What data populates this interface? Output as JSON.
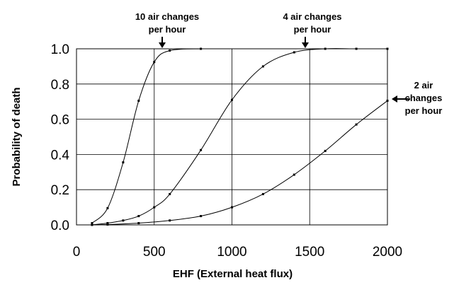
{
  "chart_data": {
    "type": "scatter",
    "xlabel": "EHF (External heat flux)",
    "ylabel": "Probability of death",
    "xlim": [
      0,
      2000
    ],
    "ylim": [
      0,
      1.0
    ],
    "x_ticks": [
      "0",
      "500",
      "1000",
      "1500",
      "2000"
    ],
    "y_ticks": [
      "0.0",
      "0.2",
      "0.4",
      "0.6",
      "0.8",
      "1.0"
    ],
    "grid": true,
    "legend": "none",
    "series": [
      {
        "annotation": [
          "10 air changes",
          "per hour"
        ],
        "points": [
          [
            100,
            0.01
          ],
          [
            200,
            0.095
          ],
          [
            300,
            0.355
          ],
          [
            400,
            0.705
          ],
          [
            500,
            0.925
          ],
          [
            600,
            0.99
          ],
          [
            800,
            1.0
          ]
        ]
      },
      {
        "annotation": [
          "4 air changes",
          "per hour"
        ],
        "points": [
          [
            100,
            0.0
          ],
          [
            200,
            0.01
          ],
          [
            300,
            0.025
          ],
          [
            400,
            0.05
          ],
          [
            500,
            0.1
          ],
          [
            600,
            0.175
          ],
          [
            800,
            0.425
          ],
          [
            1000,
            0.71
          ],
          [
            1200,
            0.9
          ],
          [
            1400,
            0.98
          ],
          [
            1600,
            1.0
          ],
          [
            1800,
            1.0
          ],
          [
            2000,
            1.0
          ]
        ]
      },
      {
        "annotation": [
          "2 air",
          "changes",
          "per hour"
        ],
        "points": [
          [
            100,
            0.0
          ],
          [
            200,
            0.002
          ],
          [
            400,
            0.01
          ],
          [
            600,
            0.025
          ],
          [
            800,
            0.05
          ],
          [
            1000,
            0.1
          ],
          [
            1200,
            0.175
          ],
          [
            1400,
            0.285
          ],
          [
            1600,
            0.42
          ],
          [
            1800,
            0.57
          ],
          [
            2000,
            0.705
          ]
        ]
      }
    ]
  }
}
